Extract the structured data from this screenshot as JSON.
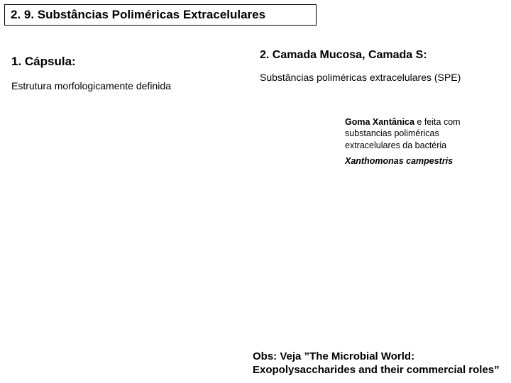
{
  "colors": {
    "accent": "#cc0000",
    "background": "#ffffff",
    "text": "#000000",
    "border": "#000000"
  },
  "title": "2. 9.  Substâncias Poliméricas Extracelulares",
  "left": {
    "heading": "1.  Cápsula:",
    "sub": "Estrutura morfologicamente definida"
  },
  "right": {
    "heading": "2. Camada Mucosa, Camada S:",
    "sub": "Substâncias poliméricas extracelulares (SPE)"
  },
  "goma": {
    "strong": "Goma Xantânica",
    "rest": " e feita com substancias poliméricas extracelulares da bactéria",
    "species": "Xanthomonas campestris"
  },
  "obs": "Obs: Veja ”The Microbial World: Exopolysaccharides and their commercial roles”",
  "layout": {
    "slide_width": 720,
    "slide_height": 540,
    "title_fontsize": 17,
    "heading_fontsize": 17,
    "sub_fontsize": 14,
    "goma_fontsize": 12.5,
    "obs_fontsize": 15
  }
}
